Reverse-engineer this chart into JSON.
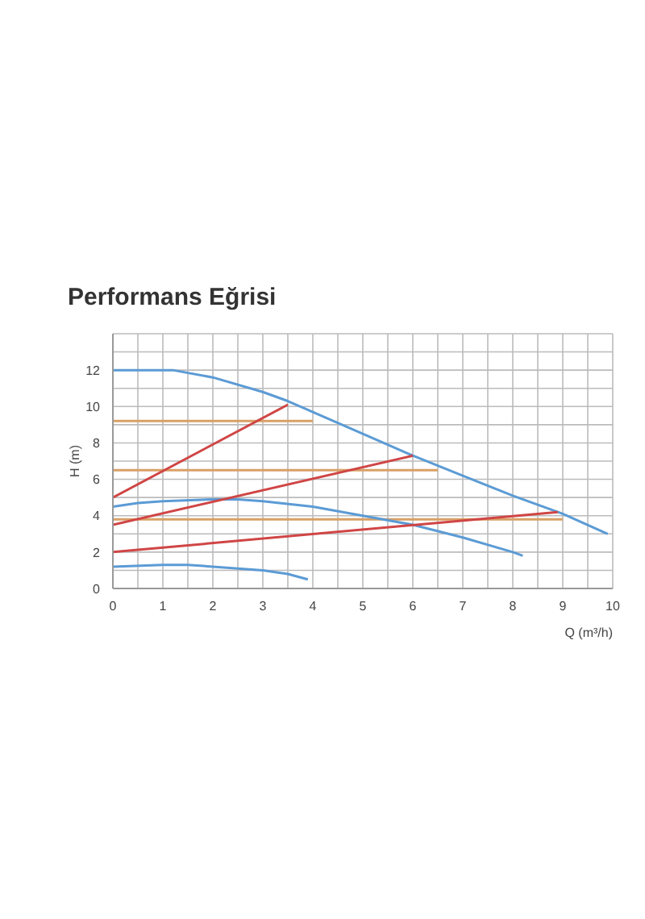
{
  "chart_data": {
    "type": "line",
    "title": "Performans Eğrisi",
    "xlabel": "Q (m³/h)",
    "ylabel": "H (m)",
    "xlim": [
      0,
      10
    ],
    "ylim": [
      0,
      14
    ],
    "xticks": [
      0,
      {
        "value": 0.5,
        "label": null
      },
      1,
      {
        "value": 1.5,
        "label": null
      },
      2,
      {
        "value": 2.5,
        "label": null
      },
      3,
      {
        "value": 3.5,
        "label": null
      },
      4,
      {
        "value": 4.5,
        "label": null
      },
      5,
      {
        "value": 5.5,
        "label": null
      },
      6,
      {
        "value": 6.5,
        "label": null
      },
      7,
      {
        "value": 7.5,
        "label": null
      },
      8,
      {
        "value": 8.5,
        "label": null
      },
      9,
      {
        "value": 9.5,
        "label": null
      },
      10
    ],
    "yticks": [
      0,
      {
        "value": 1,
        "label": null
      },
      2,
      {
        "value": 3,
        "label": null
      },
      4,
      {
        "value": 5,
        "label": null
      },
      6,
      {
        "value": 7,
        "label": null
      },
      8,
      {
        "value": 9,
        "label": null
      },
      10,
      {
        "value": 11,
        "label": null
      },
      12,
      {
        "value": 13,
        "label": null
      },
      {
        "value": 14,
        "label": null
      }
    ],
    "grid": true,
    "marker": "none",
    "line_style": "solid",
    "series": [
      {
        "color": "#d9a066",
        "x": [
          0,
          4
        ],
        "values": [
          9.2,
          9.2
        ]
      },
      {
        "color": "#d9a066",
        "x": [
          0,
          6.5
        ],
        "values": [
          6.5,
          6.5
        ]
      },
      {
        "color": "#d9a066",
        "x": [
          0,
          9
        ],
        "values": [
          3.8,
          3.8
        ]
      },
      {
        "color": "#5b9bd5",
        "x": [
          0,
          1.2,
          2,
          3,
          3.5,
          4,
          5,
          6,
          7,
          8,
          9,
          9.9
        ],
        "values": [
          12,
          12,
          11.6,
          10.8,
          10.3,
          9.7,
          8.5,
          7.3,
          6.2,
          5.1,
          4.1,
          3.0
        ]
      },
      {
        "color": "#5b9bd5",
        "x": [
          0,
          0.5,
          1,
          2,
          2.5,
          3,
          4,
          5,
          6,
          7,
          8,
          8.2
        ],
        "values": [
          4.5,
          4.7,
          4.8,
          4.9,
          4.9,
          4.8,
          4.5,
          4.0,
          3.5,
          2.8,
          2.0,
          1.8
        ]
      },
      {
        "color": "#5b9bd5",
        "x": [
          0,
          1,
          1.5,
          2,
          3,
          3.5,
          3.9
        ],
        "values": [
          1.2,
          1.3,
          1.3,
          1.2,
          1.0,
          0.8,
          0.5
        ]
      },
      {
        "color": "#d04545",
        "x": [
          0,
          3.5
        ],
        "values": [
          5,
          10.1
        ]
      },
      {
        "color": "#d04545",
        "x": [
          0,
          6
        ],
        "values": [
          3.5,
          7.3
        ]
      },
      {
        "color": "#d04545",
        "x": [
          0,
          8.9
        ],
        "values": [
          2,
          4.2
        ]
      }
    ]
  }
}
